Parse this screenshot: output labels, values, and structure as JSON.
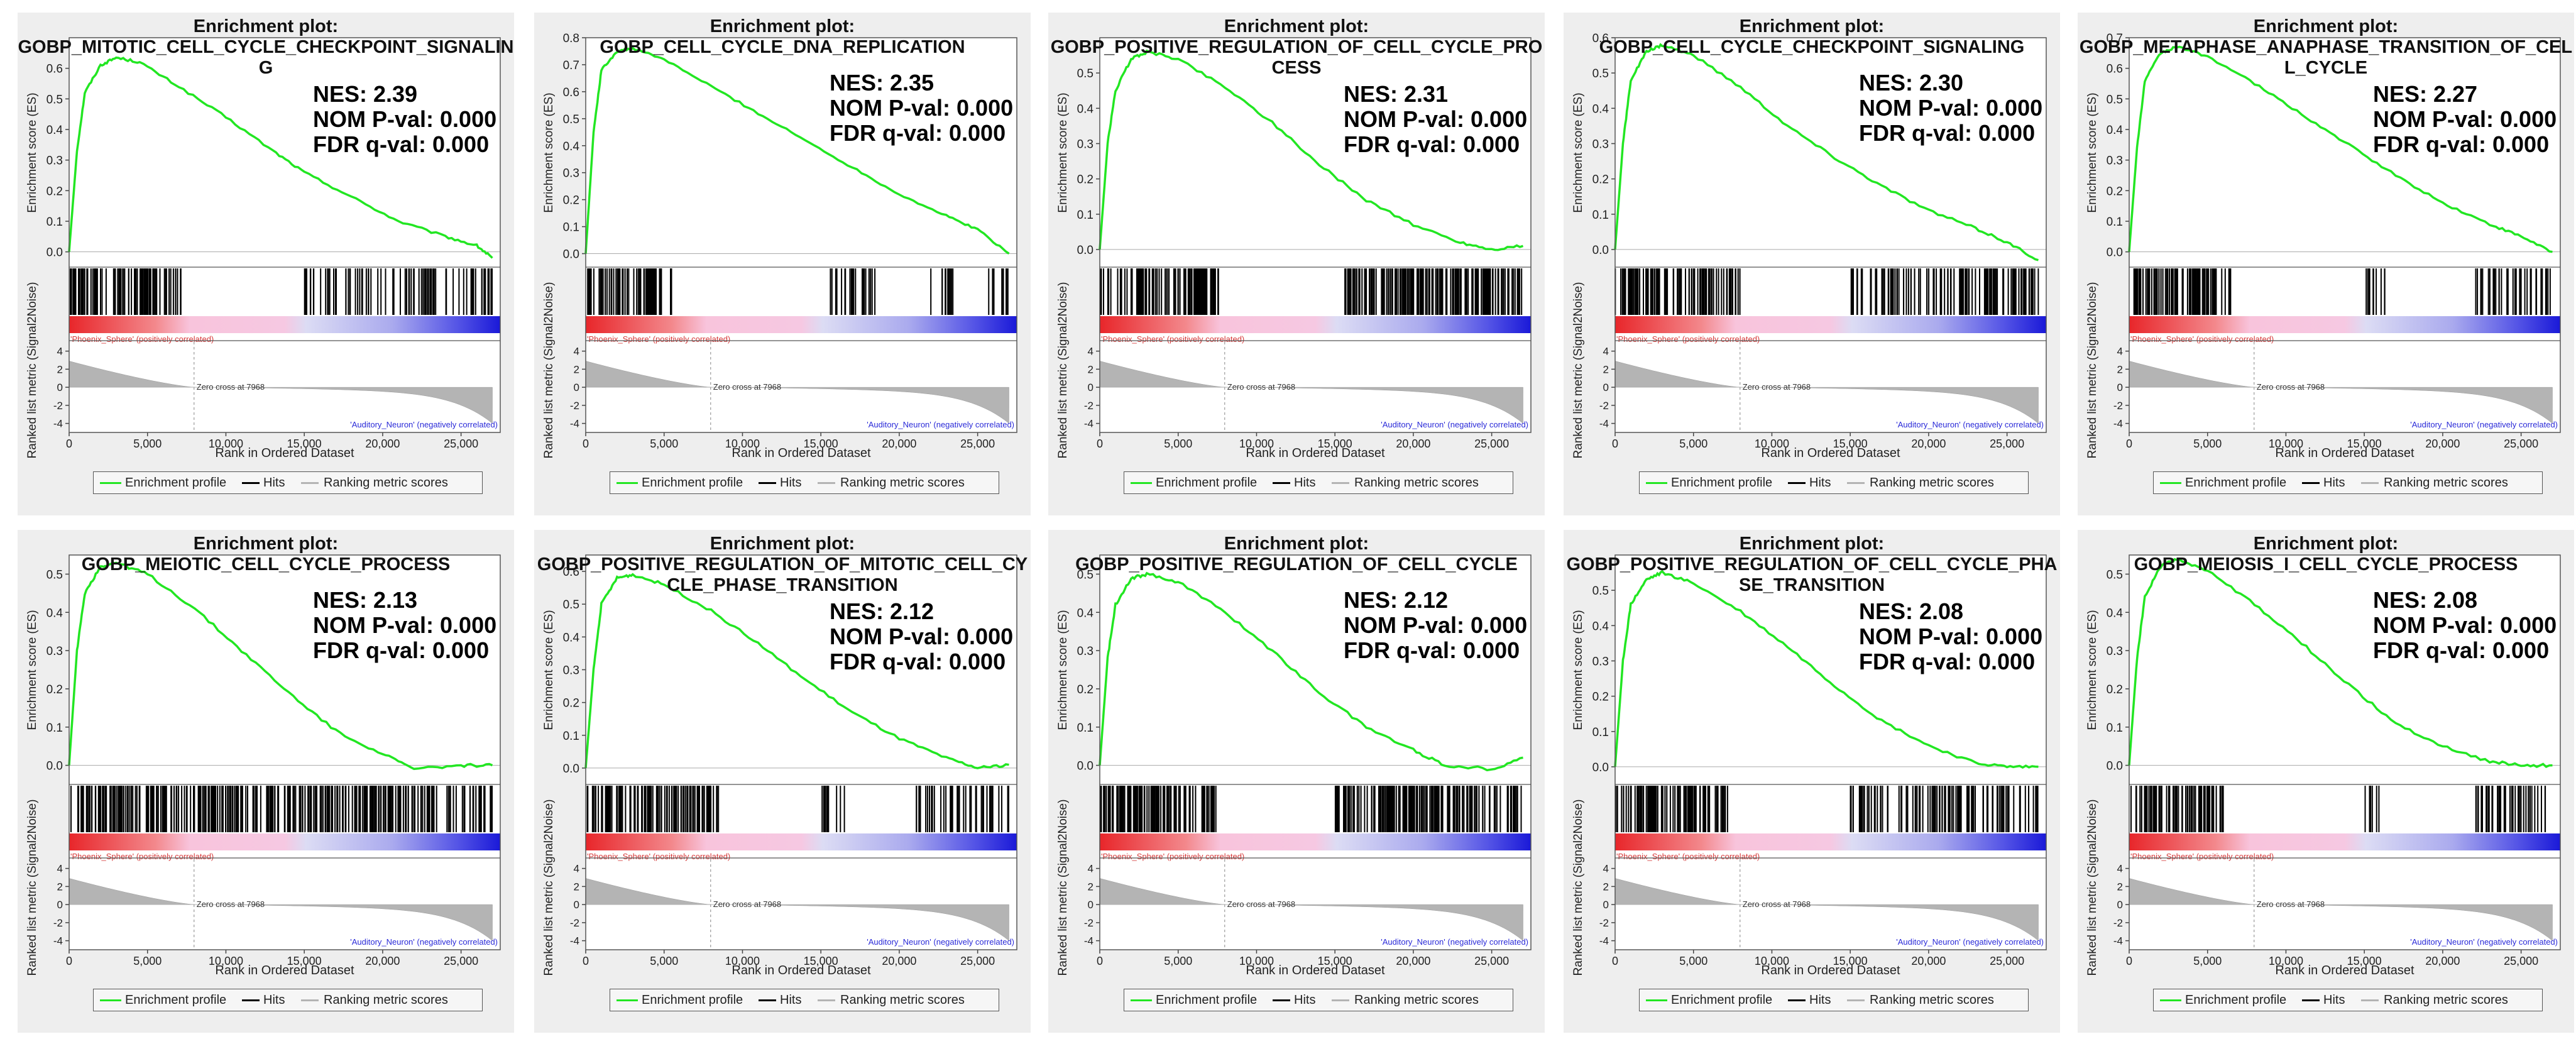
{
  "chart_data": [
    {
      "type": "line",
      "title": "Enrichment plot:",
      "name_lines": [
        "GOBP_MITOTIC_CELL_CYCLE_CHECKPOINT_SIGNALIN",
        "G"
      ],
      "nes": "NES: 2.39",
      "pval": "NOM P-val: 0.000",
      "fdr": "FDR q-val: 0.000",
      "ylim": [
        -0.05,
        0.7
      ],
      "yticks": [
        "0.6",
        "0.5",
        "0.4",
        "0.3",
        "0.2",
        "0.1",
        "0.0"
      ],
      "es_points": [
        [
          0,
          0.0
        ],
        [
          500,
          0.33
        ],
        [
          1000,
          0.52
        ],
        [
          2000,
          0.61
        ],
        [
          3000,
          0.635
        ],
        [
          4500,
          0.62
        ],
        [
          7000,
          0.54
        ],
        [
          10000,
          0.44
        ],
        [
          13000,
          0.33
        ],
        [
          15000,
          0.26
        ],
        [
          18000,
          0.18
        ],
        [
          21000,
          0.1
        ],
        [
          24000,
          0.05
        ],
        [
          26000,
          0.02
        ],
        [
          27000,
          -0.02
        ]
      ],
      "hits": [
        [
          0,
          7200,
          0.9
        ],
        [
          15000,
          27000,
          0.45
        ]
      ]
    },
    {
      "type": "line",
      "title": "Enrichment plot:",
      "name_lines": [
        "GOBP_CELL_CYCLE_DNA_REPLICATION"
      ],
      "nes": "NES: 2.35",
      "pval": "NOM P-val: 0.000",
      "fdr": "FDR q-val: 0.000",
      "ylim": [
        -0.05,
        0.8
      ],
      "yticks": [
        "0.8",
        "0.7",
        "0.6",
        "0.5",
        "0.4",
        "0.3",
        "0.2",
        "0.1",
        "0.0"
      ],
      "es_points": [
        [
          0,
          0.0
        ],
        [
          500,
          0.45
        ],
        [
          1000,
          0.68
        ],
        [
          2000,
          0.75
        ],
        [
          3000,
          0.76
        ],
        [
          5000,
          0.72
        ],
        [
          8000,
          0.62
        ],
        [
          11000,
          0.52
        ],
        [
          14000,
          0.42
        ],
        [
          17000,
          0.32
        ],
        [
          20000,
          0.22
        ],
        [
          23000,
          0.14
        ],
        [
          25000,
          0.09
        ],
        [
          27000,
          0.0
        ]
      ],
      "hits": [
        [
          0,
          5500,
          0.75
        ],
        [
          15500,
          18500,
          0.6
        ],
        [
          22000,
          23500,
          0.5
        ],
        [
          25500,
          27000,
          0.4
        ]
      ]
    },
    {
      "type": "line",
      "title": "Enrichment plot:",
      "name_lines": [
        "GOBP_POSITIVE_REGULATION_OF_CELL_CYCLE_PRO",
        "CESS"
      ],
      "nes": "NES: 2.31",
      "pval": "NOM P-val: 0.000",
      "fdr": "FDR q-val: 0.000",
      "ylim": [
        -0.05,
        0.6
      ],
      "yticks": [
        "0.5",
        "0.4",
        "0.3",
        "0.2",
        "0.1",
        "0.0"
      ],
      "es_points": [
        [
          0,
          0.0
        ],
        [
          500,
          0.3
        ],
        [
          1000,
          0.45
        ],
        [
          2000,
          0.54
        ],
        [
          3000,
          0.56
        ],
        [
          5000,
          0.54
        ],
        [
          8000,
          0.46
        ],
        [
          11000,
          0.36
        ],
        [
          14000,
          0.24
        ],
        [
          17000,
          0.14
        ],
        [
          20000,
          0.07
        ],
        [
          23000,
          0.02
        ],
        [
          25000,
          0.0
        ],
        [
          27000,
          0.01
        ]
      ],
      "hits": [
        [
          0,
          7600,
          0.95
        ],
        [
          15500,
          27000,
          0.95
        ]
      ]
    },
    {
      "type": "line",
      "title": "Enrichment plot:",
      "name_lines": [
        "GOBP_CELL_CYCLE_CHECKPOINT_SIGNALING"
      ],
      "nes": "NES: 2.30",
      "pval": "NOM P-val: 0.000",
      "fdr": "FDR q-val: 0.000",
      "ylim": [
        -0.05,
        0.6
      ],
      "yticks": [
        "0.6",
        "0.5",
        "0.4",
        "0.3",
        "0.2",
        "0.1",
        "0.0"
      ],
      "es_points": [
        [
          0,
          0.0
        ],
        [
          500,
          0.3
        ],
        [
          1000,
          0.48
        ],
        [
          2000,
          0.56
        ],
        [
          3000,
          0.58
        ],
        [
          5000,
          0.55
        ],
        [
          8000,
          0.46
        ],
        [
          11000,
          0.35
        ],
        [
          14000,
          0.26
        ],
        [
          17000,
          0.18
        ],
        [
          20000,
          0.11
        ],
        [
          23000,
          0.06
        ],
        [
          25000,
          0.02
        ],
        [
          27000,
          -0.03
        ]
      ],
      "hits": [
        [
          0,
          8000,
          0.9
        ],
        [
          15000,
          27000,
          0.7
        ]
      ]
    },
    {
      "type": "line",
      "title": "Enrichment plot:",
      "name_lines": [
        "GOBP_METAPHASE_ANAPHASE_TRANSITION_OF_CEL",
        "L_CYCLE"
      ],
      "nes": "NES: 2.27",
      "pval": "NOM P-val: 0.000",
      "fdr": "FDR q-val: 0.000",
      "ylim": [
        -0.05,
        0.7
      ],
      "yticks": [
        "0.7",
        "0.6",
        "0.5",
        "0.4",
        "0.3",
        "0.2",
        "0.1",
        "0.0"
      ],
      "es_points": [
        [
          0,
          0.0
        ],
        [
          500,
          0.34
        ],
        [
          1000,
          0.56
        ],
        [
          2000,
          0.65
        ],
        [
          3000,
          0.67
        ],
        [
          5000,
          0.64
        ],
        [
          8000,
          0.55
        ],
        [
          11000,
          0.45
        ],
        [
          14000,
          0.35
        ],
        [
          17000,
          0.25
        ],
        [
          20000,
          0.16
        ],
        [
          23000,
          0.09
        ],
        [
          25000,
          0.05
        ],
        [
          27000,
          0.0
        ]
      ],
      "hits": [
        [
          0,
          6500,
          0.85
        ],
        [
          15000,
          16500,
          0.5
        ],
        [
          22000,
          27000,
          0.6
        ]
      ]
    },
    {
      "type": "line",
      "title": "Enrichment plot:",
      "name_lines": [
        "GOBP_MEIOTIC_CELL_CYCLE_PROCESS"
      ],
      "nes": "NES: 2.13",
      "pval": "NOM P-val: 0.000",
      "fdr": "FDR q-val: 0.000",
      "ylim": [
        -0.05,
        0.55
      ],
      "yticks": [
        "0.5",
        "0.4",
        "0.3",
        "0.2",
        "0.1",
        "0.0"
      ],
      "es_points": [
        [
          0,
          0.0
        ],
        [
          500,
          0.3
        ],
        [
          1000,
          0.45
        ],
        [
          2000,
          0.52
        ],
        [
          3000,
          0.53
        ],
        [
          5000,
          0.5
        ],
        [
          8000,
          0.41
        ],
        [
          11000,
          0.3
        ],
        [
          14000,
          0.19
        ],
        [
          17000,
          0.09
        ],
        [
          20000,
          0.03
        ],
        [
          22000,
          -0.01
        ],
        [
          25000,
          0.0
        ],
        [
          27000,
          0.0
        ]
      ],
      "hits": [
        [
          0,
          15500,
          0.85
        ],
        [
          15500,
          27000,
          0.8
        ]
      ]
    },
    {
      "type": "line",
      "title": "Enrichment plot:",
      "name_lines": [
        "GOBP_POSITIVE_REGULATION_OF_MITOTIC_CELL_CY",
        "CLE_PHASE_TRANSITION"
      ],
      "nes": "NES: 2.12",
      "pval": "NOM P-val: 0.000",
      "fdr": "FDR q-val: 0.000",
      "ylim": [
        -0.05,
        0.65
      ],
      "yticks": [
        "0.6",
        "0.5",
        "0.4",
        "0.3",
        "0.2",
        "0.1",
        "0.0"
      ],
      "es_points": [
        [
          0,
          0.0
        ],
        [
          500,
          0.3
        ],
        [
          1000,
          0.5
        ],
        [
          2000,
          0.58
        ],
        [
          3000,
          0.59
        ],
        [
          5000,
          0.56
        ],
        [
          8000,
          0.48
        ],
        [
          11000,
          0.38
        ],
        [
          14000,
          0.27
        ],
        [
          17000,
          0.17
        ],
        [
          20000,
          0.09
        ],
        [
          23000,
          0.03
        ],
        [
          25000,
          0.0
        ],
        [
          27000,
          0.01
        ]
      ],
      "hits": [
        [
          0,
          8500,
          0.9
        ],
        [
          15000,
          16500,
          0.5
        ],
        [
          21000,
          27000,
          0.5
        ]
      ]
    },
    {
      "type": "line",
      "title": "Enrichment plot:",
      "name_lines": [
        "GOBP_POSITIVE_REGULATION_OF_CELL_CYCLE"
      ],
      "nes": "NES: 2.12",
      "pval": "NOM P-val: 0.000",
      "fdr": "FDR q-val: 0.000",
      "ylim": [
        -0.05,
        0.55
      ],
      "yticks": [
        "0.5",
        "0.4",
        "0.3",
        "0.2",
        "0.1",
        "0.0"
      ],
      "es_points": [
        [
          0,
          0.0
        ],
        [
          500,
          0.28
        ],
        [
          1000,
          0.42
        ],
        [
          2000,
          0.49
        ],
        [
          3000,
          0.5
        ],
        [
          5000,
          0.48
        ],
        [
          8000,
          0.4
        ],
        [
          11000,
          0.3
        ],
        [
          14000,
          0.19
        ],
        [
          17000,
          0.1
        ],
        [
          20000,
          0.04
        ],
        [
          22000,
          0.0
        ],
        [
          25000,
          -0.01
        ],
        [
          27000,
          0.02
        ]
      ],
      "hits": [
        [
          0,
          7600,
          0.95
        ],
        [
          15000,
          27000,
          0.95
        ]
      ]
    },
    {
      "type": "line",
      "title": "Enrichment plot:",
      "name_lines": [
        "GOBP_POSITIVE_REGULATION_OF_CELL_CYCLE_PHA",
        "SE_TRANSITION"
      ],
      "nes": "NES: 2.08",
      "pval": "NOM P-val: 0.000",
      "fdr": "FDR q-val: 0.000",
      "ylim": [
        -0.05,
        0.6
      ],
      "yticks": [
        "0.5",
        "0.4",
        "0.3",
        "0.2",
        "0.1",
        "0.0"
      ],
      "es_points": [
        [
          0,
          0.0
        ],
        [
          500,
          0.3
        ],
        [
          1000,
          0.46
        ],
        [
          2000,
          0.53
        ],
        [
          3000,
          0.55
        ],
        [
          5000,
          0.52
        ],
        [
          8000,
          0.44
        ],
        [
          11000,
          0.34
        ],
        [
          14000,
          0.23
        ],
        [
          17000,
          0.13
        ],
        [
          20000,
          0.06
        ],
        [
          23000,
          0.01
        ],
        [
          25000,
          0.0
        ],
        [
          27000,
          0.0
        ]
      ],
      "hits": [
        [
          0,
          7200,
          0.9
        ],
        [
          15000,
          27000,
          0.6
        ]
      ]
    },
    {
      "type": "line",
      "title": "Enrichment plot:",
      "name_lines": [
        "GOBP_MEIOSIS_I_CELL_CYCLE_PROCESS"
      ],
      "nes": "NES: 2.08",
      "pval": "NOM P-val: 0.000",
      "fdr": "FDR q-val: 0.000",
      "ylim": [
        -0.05,
        0.55
      ],
      "yticks": [
        "0.5",
        "0.4",
        "0.3",
        "0.2",
        "0.1",
        "0.0"
      ],
      "es_points": [
        [
          0,
          0.0
        ],
        [
          500,
          0.28
        ],
        [
          1000,
          0.44
        ],
        [
          2000,
          0.52
        ],
        [
          3000,
          0.54
        ],
        [
          5000,
          0.51
        ],
        [
          8000,
          0.42
        ],
        [
          11000,
          0.32
        ],
        [
          14000,
          0.21
        ],
        [
          17000,
          0.11
        ],
        [
          20000,
          0.05
        ],
        [
          23000,
          0.01
        ],
        [
          25000,
          0.0
        ],
        [
          27000,
          0.0
        ]
      ],
      "hits": [
        [
          0,
          6000,
          0.9
        ],
        [
          15000,
          16000,
          0.5
        ],
        [
          22000,
          27000,
          0.6
        ]
      ]
    }
  ],
  "common": {
    "ylabel_top": "Enrichment score (ES)",
    "ylabel_bottom": "Ranked list metric (Signal2Noise)",
    "xlabel": "Rank in Ordered Dataset",
    "xticks": [
      "0",
      "5,000",
      "10,000",
      "15,000",
      "20,000",
      "25,000"
    ],
    "metric_ticks": [
      "4",
      "2",
      "0",
      "-2",
      "-4"
    ],
    "pos_label": "'Phoenix_Sphere' (positively correlated)",
    "neg_label": "'Auditory_Neuron' (negatively correlated)",
    "zero_cross": "Zero cross at 7968",
    "legend": {
      "profile": "Enrichment profile",
      "hits": "Hits",
      "metric": "Ranking metric scores"
    },
    "colors": {
      "profile": "#22e622",
      "hits": "#000000",
      "metric": "#b4b4b4",
      "pos": "#e8262a",
      "neg": "#1a19d8",
      "pos_text": "#d63a3a",
      "neg_text": "#2a2ad8"
    }
  }
}
